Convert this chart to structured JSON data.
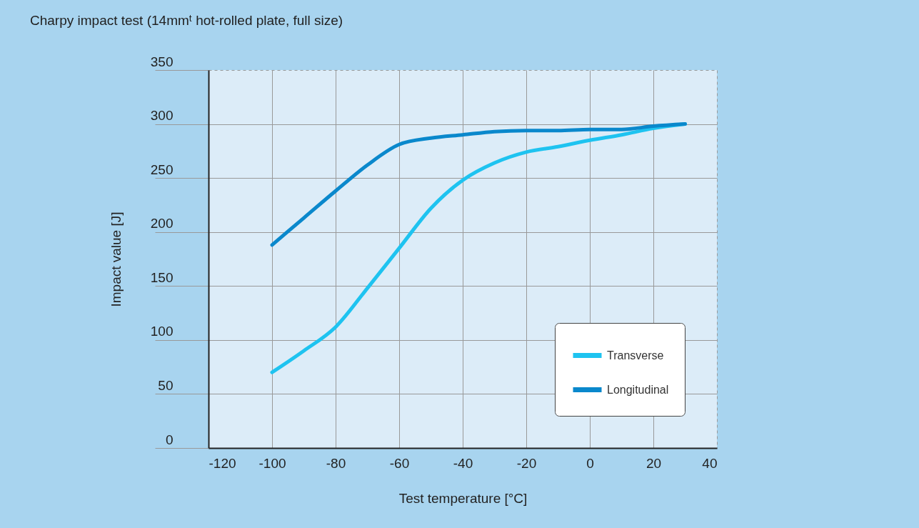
{
  "chart_data": {
    "type": "line",
    "title": "Charpy impact test (14mmᵗ hot-rolled plate, full size)",
    "xlabel": "Test temperature [°C]",
    "ylabel": "Impact value [J]",
    "x": [
      -100,
      -90,
      -80,
      -70,
      -60,
      -50,
      -40,
      -30,
      -20,
      -10,
      0,
      10,
      20,
      30
    ],
    "series": [
      {
        "name": "Transverse",
        "color": "#1ec3f0",
        "values": [
          70,
          90,
          112,
          148,
          185,
          222,
          248,
          264,
          274,
          279,
          285,
          290,
          296,
          300
        ]
      },
      {
        "name": "Longitudinal",
        "color": "#0a88cc",
        "values": [
          188,
          213,
          238,
          262,
          281,
          287,
          290,
          293,
          294,
          294,
          295,
          295,
          298,
          300
        ]
      }
    ],
    "xlim": [
      -120,
      40
    ],
    "xticks": [
      -120,
      -100,
      -80,
      -60,
      -40,
      -20,
      0,
      20,
      40
    ],
    "ylim": [
      0,
      350
    ],
    "yticks": [
      0,
      50,
      100,
      150,
      200,
      250,
      300,
      350
    ],
    "grid": true,
    "legend": "bottom right",
    "marker": "none",
    "line_style": "solid"
  }
}
